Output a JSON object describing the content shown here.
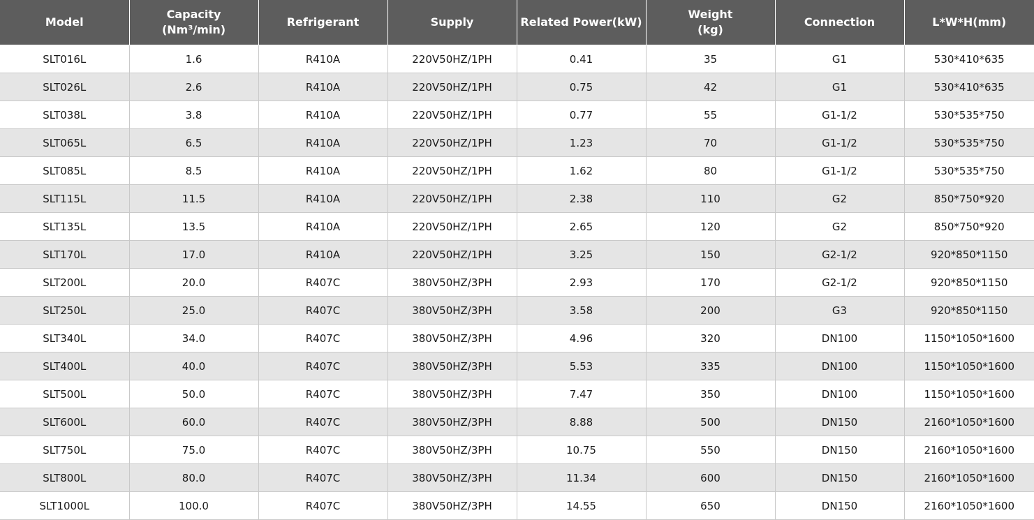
{
  "table": {
    "headers": [
      {
        "line1": "Model",
        "line2": ""
      },
      {
        "line1": "Capacity",
        "line2": "(Nm³/min)"
      },
      {
        "line1": "Refrigerant",
        "line2": ""
      },
      {
        "line1": "Supply",
        "line2": ""
      },
      {
        "line1": "Related Power(kW)",
        "line2": ""
      },
      {
        "line1": "Weight",
        "line2": "(kg)"
      },
      {
        "line1": "Connection",
        "line2": ""
      },
      {
        "line1": "L*W*H(mm)",
        "line2": ""
      }
    ],
    "rows": [
      [
        "SLT016L",
        "1.6",
        "R410A",
        "220V50HZ/1PH",
        "0.41",
        "35",
        "G1",
        "530*410*635"
      ],
      [
        "SLT026L",
        "2.6",
        "R410A",
        "220V50HZ/1PH",
        "0.75",
        "42",
        "G1",
        "530*410*635"
      ],
      [
        "SLT038L",
        "3.8",
        "R410A",
        "220V50HZ/1PH",
        "0.77",
        "55",
        "G1-1/2",
        "530*535*750"
      ],
      [
        "SLT065L",
        "6.5",
        "R410A",
        "220V50HZ/1PH",
        "1.23",
        "70",
        "G1-1/2",
        "530*535*750"
      ],
      [
        "SLT085L",
        "8.5",
        "R410A",
        "220V50HZ/1PH",
        "1.62",
        "80",
        "G1-1/2",
        "530*535*750"
      ],
      [
        "SLT115L",
        "11.5",
        "R410A",
        "220V50HZ/1PH",
        "2.38",
        "110",
        "G2",
        "850*750*920"
      ],
      [
        "SLT135L",
        "13.5",
        "R410A",
        "220V50HZ/1PH",
        "2.65",
        "120",
        "G2",
        "850*750*920"
      ],
      [
        "SLT170L",
        "17.0",
        "R410A",
        "220V50HZ/1PH",
        "3.25",
        "150",
        "G2-1/2",
        "920*850*1150"
      ],
      [
        "SLT200L",
        "20.0",
        "R407C",
        "380V50HZ/3PH",
        "2.93",
        "170",
        "G2-1/2",
        "920*850*1150"
      ],
      [
        "SLT250L",
        "25.0",
        "R407C",
        "380V50HZ/3PH",
        "3.58",
        "200",
        "G3",
        "920*850*1150"
      ],
      [
        "SLT340L",
        "34.0",
        "R407C",
        "380V50HZ/3PH",
        "4.96",
        "320",
        "DN100",
        "1150*1050*1600"
      ],
      [
        "SLT400L",
        "40.0",
        "R407C",
        "380V50HZ/3PH",
        "5.53",
        "335",
        "DN100",
        "1150*1050*1600"
      ],
      [
        "SLT500L",
        "50.0",
        "R407C",
        "380V50HZ/3PH",
        "7.47",
        "350",
        "DN100",
        "1150*1050*1600"
      ],
      [
        "SLT600L",
        "60.0",
        "R407C",
        "380V50HZ/3PH",
        "8.88",
        "500",
        "DN150",
        "2160*1050*1600"
      ],
      [
        "SLT750L",
        "75.0",
        "R407C",
        "380V50HZ/3PH",
        "10.75",
        "550",
        "DN150",
        "2160*1050*1600"
      ],
      [
        "SLT800L",
        "80.0",
        "R407C",
        "380V50HZ/3PH",
        "11.34",
        "600",
        "DN150",
        "2160*1050*1600"
      ],
      [
        "SLT1000L",
        "100.0",
        "R407C",
        "380V50HZ/3PH",
        "14.55",
        "650",
        "DN150",
        "2160*1050*1600"
      ]
    ]
  },
  "colors": {
    "header_bg": "#5d5d5d",
    "header_text": "#ffffff",
    "row_alt_bg": "#e5e5e5",
    "grid_line": "#c9c9c9"
  }
}
